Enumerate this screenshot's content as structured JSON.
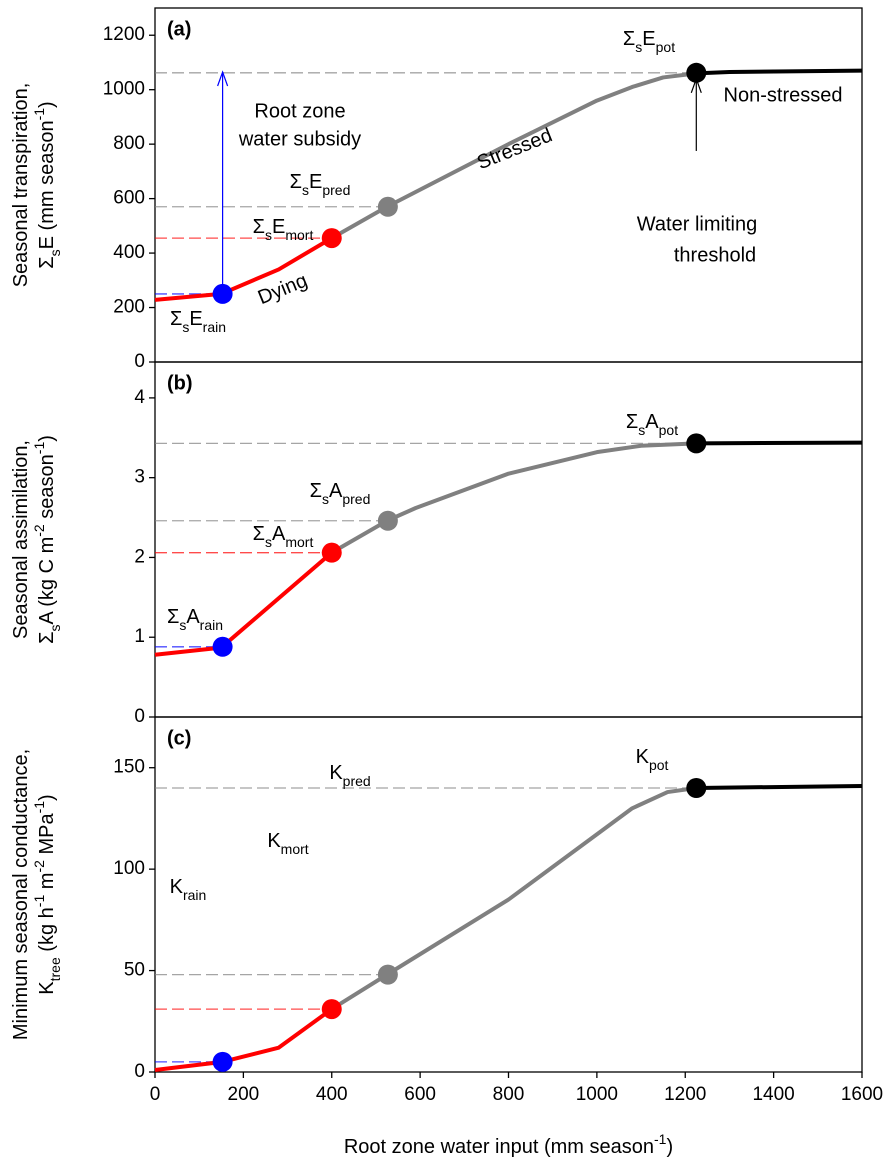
{
  "chart_data": [
    {
      "type": "line",
      "panel_label": "(a)",
      "ylabel": [
        [
          {
            "t": "Seasonal transpiration,"
          }
        ],
        [
          {
            "t": "Σ"
          },
          {
            "t": "s",
            "s": "sub"
          },
          {
            "t": "E (mm season"
          },
          {
            "t": "-1",
            "s": "sup"
          },
          {
            "t": ")"
          }
        ]
      ],
      "xlim": [
        0,
        1600
      ],
      "ylim": [
        0,
        1300
      ],
      "yticks": [
        0,
        200,
        400,
        600,
        800,
        1000,
        1200
      ],
      "guides": true,
      "series": [
        {
          "name": "Dying",
          "color": "#ff0000",
          "x": [
            0,
            150,
            280,
            400
          ],
          "values": [
            228,
            250,
            340,
            455
          ]
        },
        {
          "name": "Stressed",
          "color": "#808080",
          "x": [
            400,
            525,
            800,
            1000,
            1080,
            1150,
            1225
          ],
          "values": [
            455,
            570,
            800,
            960,
            1010,
            1045,
            1060
          ]
        },
        {
          "name": "Non-stressed",
          "color": "#000000",
          "x": [
            1225,
            1300,
            1600
          ],
          "values": [
            1060,
            1065,
            1070
          ]
        }
      ],
      "points": [
        {
          "x": 153,
          "y": 250,
          "color": "#0000ff",
          "label": [
            {
              "t": "Σ"
            },
            {
              "t": "s",
              "s": "sub"
            },
            {
              "t": "E"
            },
            {
              "t": "rain",
              "s": "sub"
            }
          ]
        },
        {
          "x": 400,
          "y": 455,
          "color": "#ff0000",
          "label": [
            {
              "t": "Σ"
            },
            {
              "t": "s",
              "s": "sub"
            },
            {
              "t": "E"
            },
            {
              "t": "mort",
              "s": "sub"
            }
          ]
        },
        {
          "x": 527,
          "y": 570,
          "color": "#808080",
          "label": [
            {
              "t": "Σ"
            },
            {
              "t": "s",
              "s": "sub"
            },
            {
              "t": "E"
            },
            {
              "t": "pred",
              "s": "sub"
            }
          ]
        },
        {
          "x": 1225,
          "y": 1062,
          "color": "#000000",
          "label": [
            {
              "t": "Σ"
            },
            {
              "t": "s",
              "s": "sub"
            },
            {
              "t": "E"
            },
            {
              "t": "pot",
              "s": "sub"
            }
          ]
        }
      ],
      "arrows": [
        {
          "x": 153,
          "from": 250,
          "to": 1065,
          "color": "#0000ff"
        },
        {
          "x": 1225,
          "from": 775,
          "to": 1040,
          "color": "#000000"
        }
      ],
      "annotations": [
        {
          "text": "Root zone",
          "color": "#0000ff"
        },
        {
          "text": "water subsidy",
          "color": "#0000ff"
        },
        {
          "text": "Water limiting",
          "color": "#000000"
        },
        {
          "text": "threshold",
          "color": "#000000"
        }
      ]
    },
    {
      "type": "line",
      "panel_label": "(b)",
      "ylabel": [
        [
          {
            "t": "Seasonal assimilation,"
          }
        ],
        [
          {
            "t": "Σ"
          },
          {
            "t": "s",
            "s": "sub"
          },
          {
            "t": "A (kg C m"
          },
          {
            "t": "-2",
            "s": "sup"
          },
          {
            "t": " season"
          },
          {
            "t": "-1",
            "s": "sup"
          },
          {
            "t": ")"
          }
        ]
      ],
      "xlim": [
        0,
        1600
      ],
      "ylim": [
        0,
        4.45
      ],
      "yticks": [
        0,
        1,
        2,
        3,
        4
      ],
      "guides": true,
      "series": [
        {
          "color": "#ff0000",
          "x": [
            0,
            150,
            400
          ],
          "values": [
            0.78,
            0.87,
            2.06
          ]
        },
        {
          "color": "#808080",
          "x": [
            400,
            525,
            590,
            800,
            1000,
            1100,
            1225
          ],
          "values": [
            2.06,
            2.46,
            2.62,
            3.05,
            3.32,
            3.4,
            3.43
          ]
        },
        {
          "color": "#000000",
          "x": [
            1225,
            1600
          ],
          "values": [
            3.43,
            3.44
          ]
        }
      ],
      "points": [
        {
          "x": 153,
          "y": 0.88,
          "color": "#0000ff",
          "label": [
            {
              "t": "Σ"
            },
            {
              "t": "s",
              "s": "sub"
            },
            {
              "t": "A"
            },
            {
              "t": "rain",
              "s": "sub"
            }
          ]
        },
        {
          "x": 400,
          "y": 2.06,
          "color": "#ff0000",
          "label": [
            {
              "t": "Σ"
            },
            {
              "t": "s",
              "s": "sub"
            },
            {
              "t": "A"
            },
            {
              "t": "mort",
              "s": "sub"
            }
          ]
        },
        {
          "x": 527,
          "y": 2.46,
          "color": "#808080",
          "label": [
            {
              "t": "Σ"
            },
            {
              "t": "s",
              "s": "sub"
            },
            {
              "t": "A"
            },
            {
              "t": "pred",
              "s": "sub"
            }
          ]
        },
        {
          "x": 1225,
          "y": 3.43,
          "color": "#000000",
          "label": [
            {
              "t": "Σ"
            },
            {
              "t": "s",
              "s": "sub"
            },
            {
              "t": "A"
            },
            {
              "t": "pot",
              "s": "sub"
            }
          ]
        }
      ]
    },
    {
      "type": "line",
      "panel_label": "(c)",
      "ylabel": [
        [
          {
            "t": "Minimum seasonal conductance,"
          }
        ],
        [
          {
            "t": "K"
          },
          {
            "t": "tree",
            "s": "sub"
          },
          {
            "t": " (kg h"
          },
          {
            "t": "-1",
            "s": "sup"
          },
          {
            "t": " m"
          },
          {
            "t": "-2",
            "s": "sup"
          },
          {
            "t": " MPa"
          },
          {
            "t": "-1",
            "s": "sup"
          },
          {
            "t": ")"
          }
        ]
      ],
      "xlim": [
        0,
        1600
      ],
      "ylim": [
        0,
        175
      ],
      "yticks": [
        0,
        50,
        100,
        150
      ],
      "xticks": [
        0,
        200,
        400,
        600,
        800,
        1000,
        1200,
        1400,
        1600
      ],
      "xlabel": [
        {
          "t": "Root zone water input (mm season"
        },
        {
          "t": "-1",
          "s": "sup"
        },
        {
          "t": ")"
        }
      ],
      "guides": true,
      "series": [
        {
          "color": "#ff0000",
          "x": [
            0,
            153,
            280,
            400
          ],
          "values": [
            1,
            5,
            12,
            31
          ]
        },
        {
          "color": "#808080",
          "x": [
            400,
            525,
            800,
            1080,
            1160,
            1225
          ],
          "values": [
            31,
            48,
            85,
            130,
            138,
            140
          ]
        },
        {
          "color": "#000000",
          "x": [
            1225,
            1600
          ],
          "values": [
            140,
            141
          ]
        }
      ],
      "points": [
        {
          "x": 153,
          "y": 5,
          "color": "#0000ff",
          "label": [
            {
              "t": "K"
            },
            {
              "t": "rain",
              "s": "sub"
            }
          ]
        },
        {
          "x": 400,
          "y": 31,
          "color": "#ff0000",
          "label": [
            {
              "t": "K"
            },
            {
              "t": "mort",
              "s": "sub"
            }
          ]
        },
        {
          "x": 527,
          "y": 48,
          "color": "#808080",
          "label": [
            {
              "t": "K"
            },
            {
              "t": "pred",
              "s": "sub"
            }
          ]
        },
        {
          "x": 1225,
          "y": 140,
          "color": "#000000",
          "label": [
            {
              "t": "K"
            },
            {
              "t": "pot",
              "s": "sub"
            }
          ]
        }
      ]
    }
  ]
}
